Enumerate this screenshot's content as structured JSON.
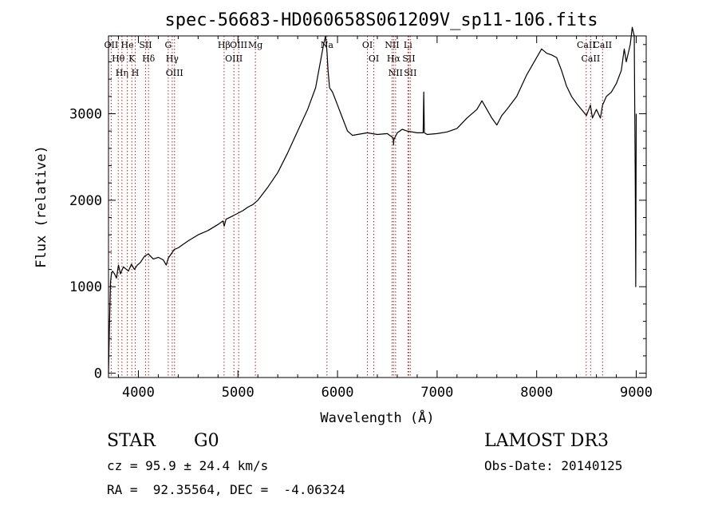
{
  "chart_data": {
    "type": "line",
    "title": "spec-56683-HD060658S061209V_sp11-106.fits",
    "xlabel": "Wavelength (Å)",
    "ylabel": "Flux (relative)",
    "xlim": [
      3700,
      9100
    ],
    "ylim": [
      -50,
      3900
    ],
    "xticks": [
      4000,
      5000,
      6000,
      7000,
      8000,
      9000
    ],
    "yticks": [
      0,
      1000,
      2000,
      3000
    ],
    "grid": false,
    "series": [
      {
        "color": "#000000",
        "x": [
          3700,
          3710,
          3720,
          3730,
          3740,
          3760,
          3780,
          3800,
          3820,
          3850,
          3880,
          3900,
          3930,
          3960,
          3990,
          4020,
          4060,
          4100,
          4150,
          4200,
          4250,
          4280,
          4300,
          4330,
          4360,
          4400,
          4500,
          4600,
          4700,
          4800,
          4850,
          4862,
          4880,
          4950,
          5000,
          5050,
          5100,
          5150,
          5200,
          5300,
          5400,
          5500,
          5600,
          5700,
          5780,
          5820,
          5860,
          5880,
          5895,
          5905,
          5920,
          5950,
          6000,
          6050,
          6100,
          6150,
          6200,
          6300,
          6400,
          6500,
          6560,
          6563,
          6566,
          6600,
          6650,
          6700,
          6800,
          6860,
          6866,
          6872,
          6900,
          7000,
          7100,
          7200,
          7300,
          7400,
          7450,
          7500,
          7550,
          7600,
          7650,
          7700,
          7800,
          7900,
          8000,
          8050,
          8100,
          8150,
          8200,
          8250,
          8300,
          8350,
          8400,
          8450,
          8500,
          8540,
          8560,
          8600,
          8640,
          8662,
          8700,
          8750,
          8800,
          8850,
          8880,
          8900,
          8920,
          8940,
          8960,
          8980,
          8990,
          8995,
          9000
        ],
        "y": [
          0,
          550,
          1050,
          1150,
          1180,
          1150,
          1100,
          1250,
          1150,
          1230,
          1200,
          1180,
          1260,
          1200,
          1250,
          1280,
          1350,
          1380,
          1320,
          1340,
          1310,
          1250,
          1330,
          1380,
          1430,
          1450,
          1530,
          1600,
          1650,
          1720,
          1760,
          1700,
          1780,
          1820,
          1850,
          1880,
          1920,
          1950,
          2000,
          2150,
          2320,
          2550,
          2800,
          3050,
          3300,
          3550,
          3800,
          3900,
          3700,
          3500,
          3300,
          3250,
          3100,
          2950,
          2800,
          2750,
          2760,
          2780,
          2760,
          2770,
          2720,
          2640,
          2700,
          2780,
          2820,
          2800,
          2780,
          2780,
          3250,
          2780,
          2760,
          2770,
          2790,
          2830,
          2950,
          3050,
          3150,
          3050,
          2950,
          2870,
          2980,
          3050,
          3200,
          3450,
          3650,
          3750,
          3700,
          3680,
          3650,
          3500,
          3320,
          3200,
          3120,
          3050,
          2980,
          3100,
          2950,
          3050,
          2950,
          3100,
          3200,
          3250,
          3350,
          3500,
          3750,
          3600,
          3700,
          3800,
          4000,
          3900,
          2200,
          1000,
          3000
        ]
      }
    ],
    "lines": [
      {
        "wavelength": 3727,
        "label": "OII"
      },
      {
        "wavelength": 3798,
        "label": "Hθ"
      },
      {
        "wavelength": 3835,
        "label": "Hη"
      },
      {
        "wavelength": 3889,
        "label": "He"
      },
      {
        "wavelength": 3934,
        "label": "K"
      },
      {
        "wavelength": 3969,
        "label": "H"
      },
      {
        "wavelength": 4072,
        "label": "SII"
      },
      {
        "wavelength": 4102,
        "label": "Hδ"
      },
      {
        "wavelength": 4300,
        "label": "G"
      },
      {
        "wavelength": 4340,
        "label": "Hγ"
      },
      {
        "wavelength": 4363,
        "label": "OIII"
      },
      {
        "wavelength": 4861,
        "label": "Hβ"
      },
      {
        "wavelength": 4959,
        "label": "OIII"
      },
      {
        "wavelength": 5007,
        "label": "OIII"
      },
      {
        "wavelength": 5175,
        "label": "Mg"
      },
      {
        "wavelength": 5894,
        "label": "Na"
      },
      {
        "wavelength": 6300,
        "label": "OI"
      },
      {
        "wavelength": 6364,
        "label": "OI"
      },
      {
        "wavelength": 6548,
        "label": "NII"
      },
      {
        "wavelength": 6563,
        "label": "Hα"
      },
      {
        "wavelength": 6583,
        "label": "NII"
      },
      {
        "wavelength": 6707,
        "label": "Li"
      },
      {
        "wavelength": 6716,
        "label": "SII"
      },
      {
        "wavelength": 6731,
        "label": "SII"
      },
      {
        "wavelength": 8498,
        "label": "CaII"
      },
      {
        "wavelength": 8542,
        "label": "CaII"
      },
      {
        "wavelength": 8662,
        "label": "CaII"
      }
    ],
    "line_color": "#b22222"
  },
  "info": {
    "object_type": "STAR",
    "subclass": "G0",
    "survey": "LAMOST DR3",
    "cz": "cz = 95.9 ± 24.4 km/s",
    "obs_date": "Obs-Date: 20140125",
    "radec": "RA =  92.35564, DEC =  -4.06324"
  }
}
